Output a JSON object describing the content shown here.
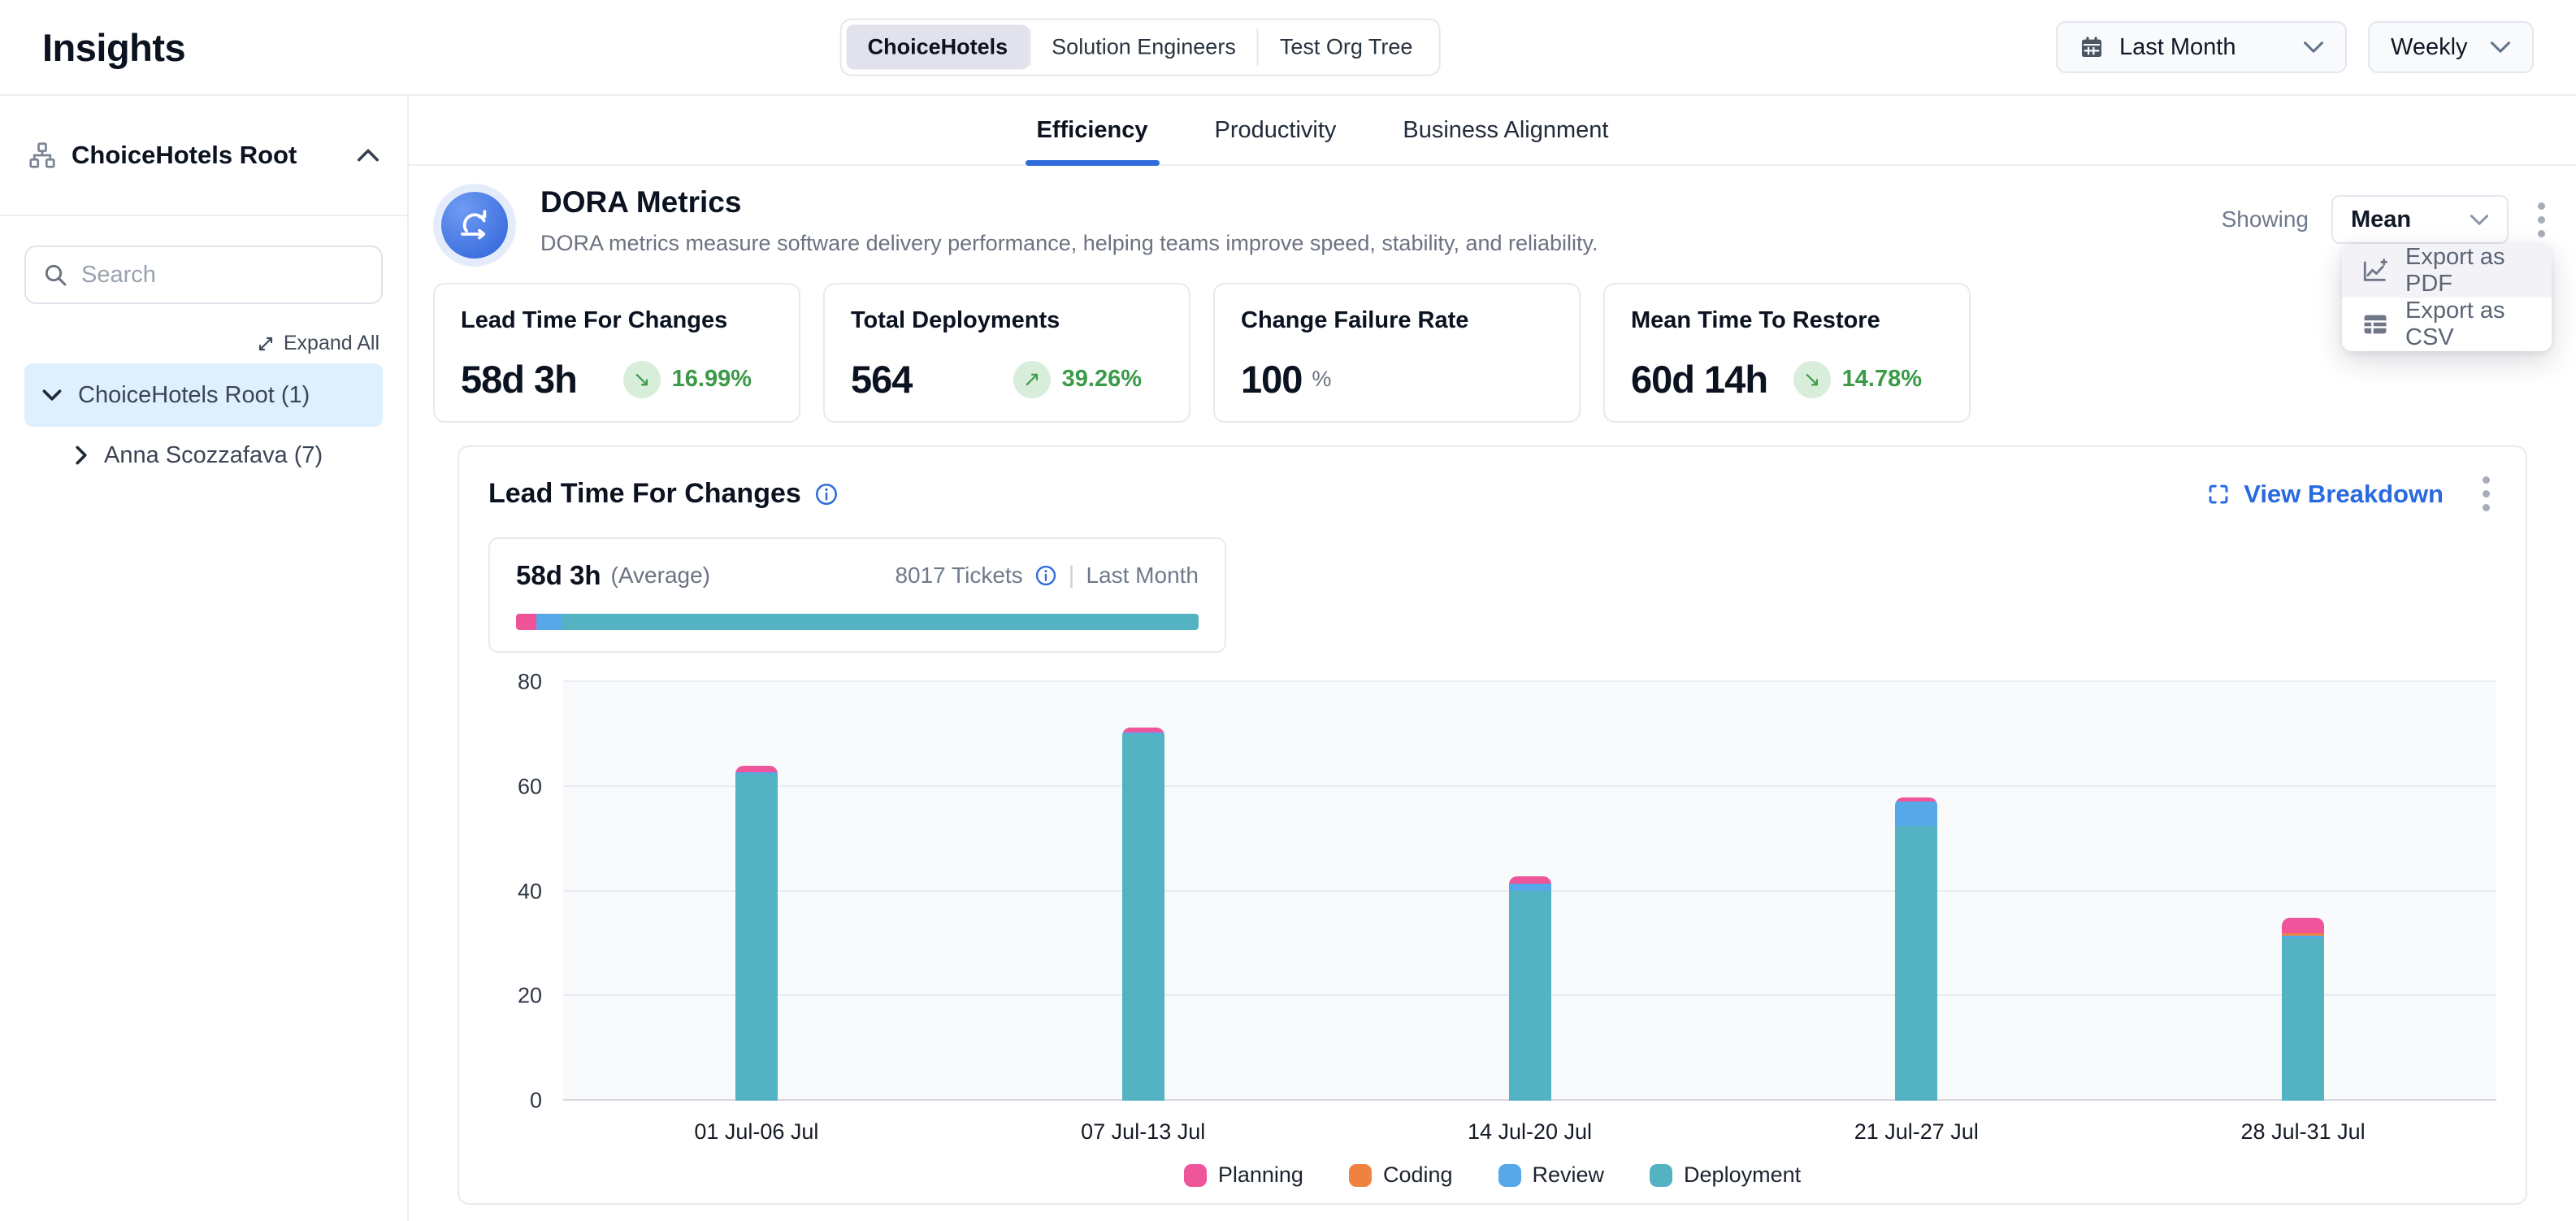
{
  "header": {
    "title": "Insights",
    "org_tabs": [
      "ChoiceHotels",
      "Solution Engineers",
      "Test Org Tree"
    ],
    "active_org_tab": "ChoiceHotels",
    "date_range": "Last Month",
    "granularity": "Weekly"
  },
  "sidebar": {
    "root_label": "ChoiceHotels Root",
    "search_placeholder": "Search",
    "expand_all_label": "Expand All",
    "tree": [
      {
        "label": "ChoiceHotels Root (1)",
        "selected": true
      },
      {
        "label": "Anna Scozzafava (7)",
        "selected": false
      }
    ]
  },
  "main_tabs": {
    "items": [
      "Efficiency",
      "Productivity",
      "Business Alignment"
    ],
    "active": "Efficiency"
  },
  "dora": {
    "title": "DORA Metrics",
    "description": "DORA metrics measure software delivery performance, helping teams improve speed, stability, and reliability.",
    "showing_label": "Showing",
    "showing_value": "Mean",
    "menu": [
      {
        "label": "Export as PDF"
      },
      {
        "label": "Export as CSV"
      }
    ]
  },
  "metric_cards": [
    {
      "title": "Lead Time For Changes",
      "value": "58d 3h",
      "trend": "down",
      "trend_arrow": "↘",
      "change": "16.99%"
    },
    {
      "title": "Total Deployments",
      "value": "564",
      "trend": "up",
      "trend_arrow": "↗",
      "change": "39.26%"
    },
    {
      "title": "Change Failure Rate",
      "value": "100",
      "unit": "%"
    },
    {
      "title": "Mean Time To Restore",
      "value": "60d 14h",
      "trend": "down",
      "trend_arrow": "↘",
      "change": "14.78%"
    }
  ],
  "chart_section": {
    "title": "Lead Time For Changes",
    "view_breakdown_label": "View Breakdown",
    "average_value": "58d 3h",
    "average_label": "(Average)",
    "tickets_label": "8017 Tickets",
    "divider": "|",
    "period_label": "Last Month",
    "progress": [
      {
        "name": "Planning",
        "color": "#ee5397",
        "pct": 3.0
      },
      {
        "name": "Review",
        "color": "#57a8e8",
        "pct": 3.8
      },
      {
        "name": "Deployment",
        "color": "#54b3c2",
        "pct": 93.2
      }
    ]
  },
  "chart_data": {
    "type": "bar",
    "stacked": true,
    "title": "Lead Time For Changes (days, weekly mean)",
    "categories": [
      "01 Jul-06 Jul",
      "07 Jul-13 Jul",
      "14 Jul-20 Jul",
      "21 Jul-27 Jul",
      "28 Jul-31 Jul"
    ],
    "series": [
      {
        "name": "Planning",
        "color": "#ee559b",
        "values": [
          1.2,
          1.0,
          1.3,
          0.8,
          3.0
        ]
      },
      {
        "name": "Coding",
        "color": "#f0823f",
        "values": [
          0,
          0,
          0,
          0,
          0.5
        ]
      },
      {
        "name": "Review",
        "color": "#57a8e8",
        "values": [
          0.4,
          0.3,
          1.5,
          4.7,
          0.5
        ]
      },
      {
        "name": "Deployment",
        "color": "#54b3c2",
        "values": [
          62.4,
          70.0,
          40.0,
          52.5,
          31.0
        ]
      }
    ],
    "totals": [
      64.0,
      71.3,
      42.8,
      58.0,
      35.0
    ],
    "stack_order_bottom_to_top": [
      "Deployment",
      "Review",
      "Coding",
      "Planning"
    ],
    "xlabel": "",
    "ylabel": "",
    "ylim": [
      0,
      80
    ],
    "yticks": [
      0,
      20,
      40,
      60,
      80
    ],
    "grid": true,
    "legend_position": "bottom"
  },
  "colors": {
    "accent_blue": "#2f6bdb",
    "green": "#3a9a47",
    "green_bg": "#d9eddb",
    "selected_tree_bg": "#def0fd",
    "plot_bg": "#f8fafc"
  }
}
